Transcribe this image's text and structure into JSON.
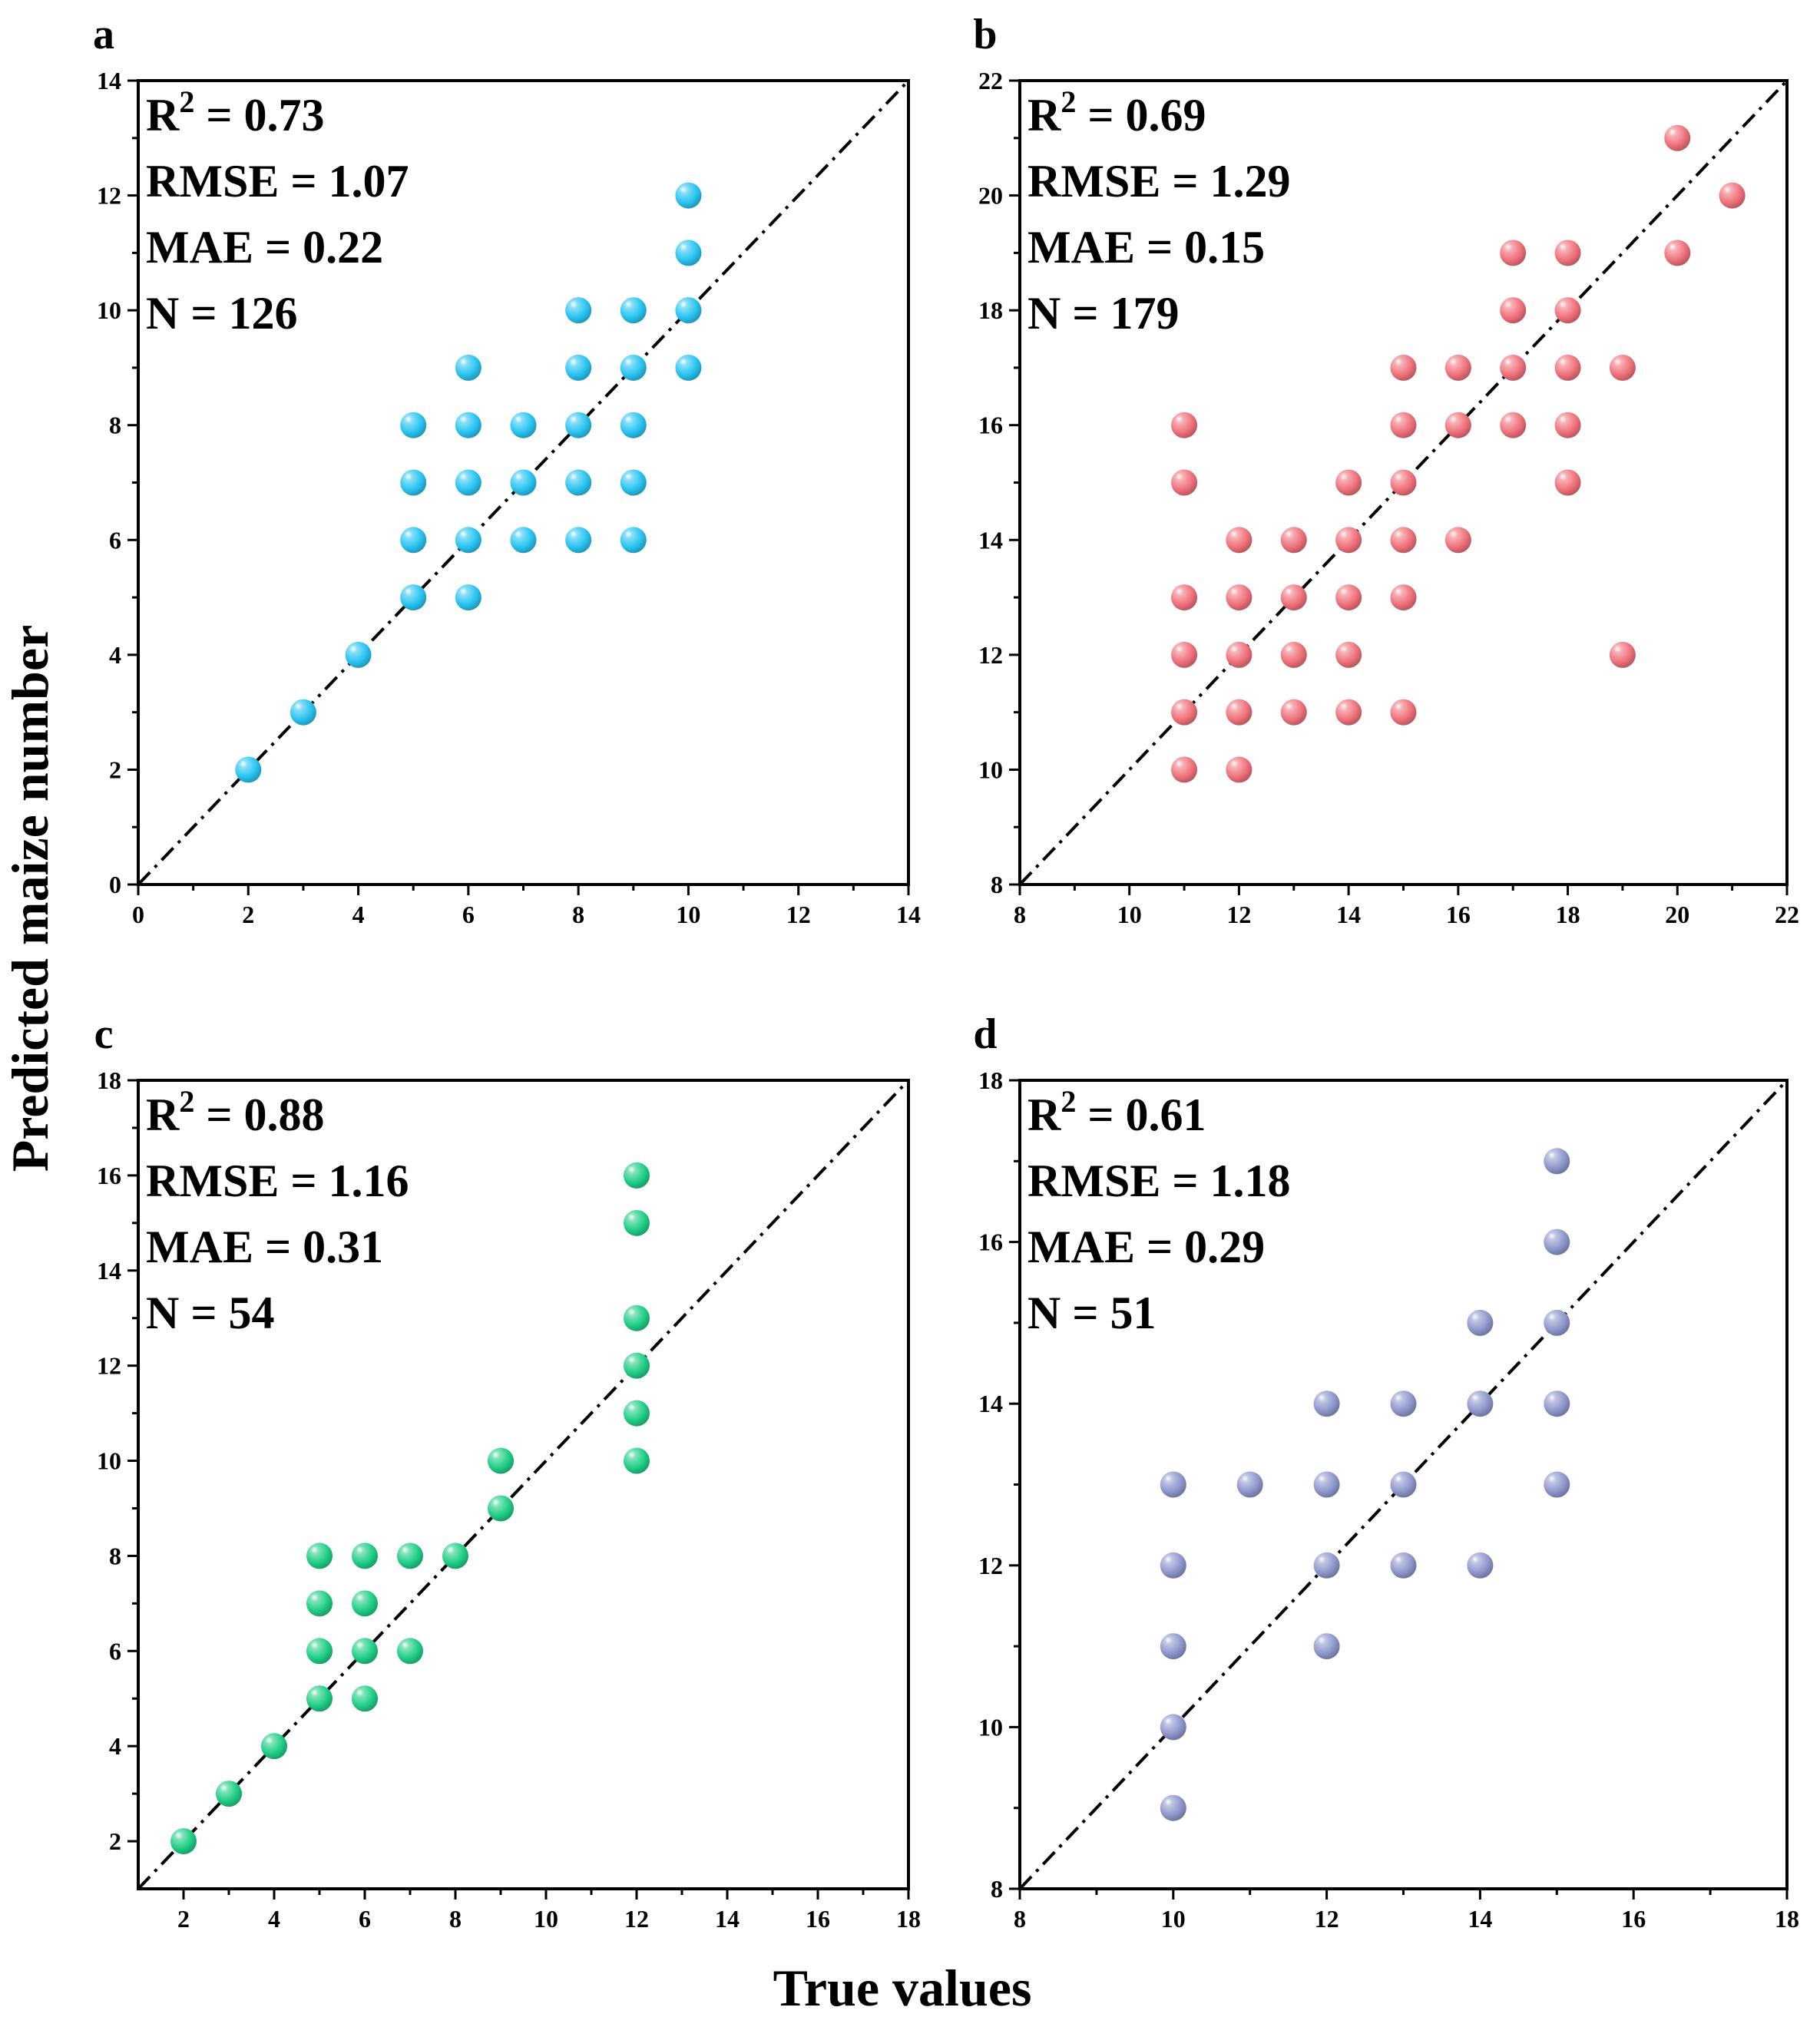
{
  "figure": {
    "xlabel": "True values",
    "ylabel": "Predicted maize number"
  },
  "chart_data": [
    {
      "type": "scatter",
      "panel": "a",
      "color": "#29c4f2",
      "xlim": [
        0,
        14
      ],
      "ylim": [
        0,
        14
      ],
      "xticks": [
        0,
        2,
        4,
        6,
        8,
        10,
        12,
        14
      ],
      "yticks": [
        0,
        2,
        4,
        6,
        8,
        10,
        12,
        14
      ],
      "stats": {
        "r2_label": "R",
        "r2_sup": "2",
        "r2_value": " = 0.73",
        "rmse": "RMSE = 1.07",
        "mae": "MAE = 0.22",
        "n": "N = 126"
      },
      "reference_line": "y = x",
      "points": [
        [
          2,
          2
        ],
        [
          3,
          3
        ],
        [
          4,
          4
        ],
        [
          5,
          5
        ],
        [
          5,
          6
        ],
        [
          5,
          7
        ],
        [
          5,
          8
        ],
        [
          6,
          5
        ],
        [
          6,
          6
        ],
        [
          6,
          7
        ],
        [
          6,
          8
        ],
        [
          6,
          9
        ],
        [
          7,
          6
        ],
        [
          7,
          7
        ],
        [
          7,
          8
        ],
        [
          8,
          6
        ],
        [
          8,
          7
        ],
        [
          8,
          8
        ],
        [
          8,
          9
        ],
        [
          8,
          10
        ],
        [
          9,
          6
        ],
        [
          9,
          7
        ],
        [
          9,
          8
        ],
        [
          9,
          9
        ],
        [
          9,
          10
        ],
        [
          10,
          9
        ],
        [
          10,
          10
        ],
        [
          10,
          11
        ],
        [
          10,
          12
        ]
      ]
    },
    {
      "type": "scatter",
      "panel": "b",
      "color": "#f0717b",
      "xlim": [
        8,
        22
      ],
      "ylim": [
        8,
        22
      ],
      "xticks": [
        8,
        10,
        12,
        14,
        16,
        18,
        20,
        22
      ],
      "yticks": [
        8,
        10,
        12,
        14,
        16,
        18,
        20,
        22
      ],
      "stats": {
        "r2_label": "R",
        "r2_sup": "2",
        "r2_value": " = 0.69",
        "rmse": "RMSE = 1.29",
        "mae": "MAE = 0.15",
        "n": "N = 179"
      },
      "reference_line": "y = x",
      "points": [
        [
          11,
          10
        ],
        [
          11,
          11
        ],
        [
          11,
          12
        ],
        [
          11,
          13
        ],
        [
          11,
          15
        ],
        [
          11,
          16
        ],
        [
          12,
          10
        ],
        [
          12,
          11
        ],
        [
          12,
          12
        ],
        [
          12,
          13
        ],
        [
          12,
          14
        ],
        [
          13,
          11
        ],
        [
          13,
          12
        ],
        [
          13,
          13
        ],
        [
          13,
          14
        ],
        [
          14,
          11
        ],
        [
          14,
          12
        ],
        [
          14,
          13
        ],
        [
          14,
          14
        ],
        [
          14,
          15
        ],
        [
          15,
          11
        ],
        [
          15,
          13
        ],
        [
          15,
          14
        ],
        [
          15,
          15
        ],
        [
          15,
          16
        ],
        [
          15,
          17
        ],
        [
          16,
          14
        ],
        [
          16,
          16
        ],
        [
          16,
          17
        ],
        [
          17,
          16
        ],
        [
          17,
          17
        ],
        [
          17,
          18
        ],
        [
          17,
          19
        ],
        [
          18,
          15
        ],
        [
          18,
          16
        ],
        [
          18,
          17
        ],
        [
          18,
          18
        ],
        [
          18,
          19
        ],
        [
          19,
          12
        ],
        [
          19,
          17
        ],
        [
          20,
          19
        ],
        [
          20,
          21
        ],
        [
          21,
          20
        ]
      ]
    },
    {
      "type": "scatter",
      "panel": "c",
      "color": "#1fce86",
      "xlim": [
        1,
        18
      ],
      "ylim": [
        1,
        18
      ],
      "xticks": [
        2,
        4,
        6,
        8,
        10,
        12,
        14,
        16,
        18
      ],
      "yticks": [
        2,
        4,
        6,
        8,
        10,
        12,
        14,
        16,
        18
      ],
      "stats": {
        "r2_label": "R",
        "r2_sup": "2",
        "r2_value": " = 0.88",
        "rmse": "RMSE = 1.16",
        "mae": "MAE = 0.31",
        "n": "N = 54"
      },
      "reference_line": "y = x",
      "points": [
        [
          2,
          2
        ],
        [
          3,
          3
        ],
        [
          4,
          4
        ],
        [
          5,
          5
        ],
        [
          5,
          6
        ],
        [
          5,
          7
        ],
        [
          5,
          8
        ],
        [
          6,
          5
        ],
        [
          6,
          6
        ],
        [
          6,
          7
        ],
        [
          6,
          8
        ],
        [
          7,
          6
        ],
        [
          7,
          8
        ],
        [
          8,
          8
        ],
        [
          9,
          9
        ],
        [
          9,
          10
        ],
        [
          12,
          10
        ],
        [
          12,
          11
        ],
        [
          12,
          12
        ],
        [
          12,
          13
        ],
        [
          12,
          15
        ],
        [
          12,
          16
        ]
      ]
    },
    {
      "type": "scatter",
      "panel": "d",
      "color": "#8e97cc",
      "xlim": [
        8,
        18
      ],
      "ylim": [
        8,
        18
      ],
      "xticks": [
        8,
        10,
        12,
        14,
        16,
        18
      ],
      "yticks": [
        8,
        10,
        12,
        14,
        16,
        18
      ],
      "stats": {
        "r2_label": "R",
        "r2_sup": "2",
        "r2_value": " = 0.61",
        "rmse": "RMSE = 1.18",
        "mae": "MAE = 0.29",
        "n": "N = 51"
      },
      "reference_line": "y = x",
      "points": [
        [
          10,
          9
        ],
        [
          10,
          10
        ],
        [
          10,
          11
        ],
        [
          10,
          12
        ],
        [
          10,
          13
        ],
        [
          11,
          13
        ],
        [
          12,
          11
        ],
        [
          12,
          12
        ],
        [
          12,
          13
        ],
        [
          12,
          14
        ],
        [
          13,
          12
        ],
        [
          13,
          13
        ],
        [
          13,
          14
        ],
        [
          14,
          12
        ],
        [
          14,
          14
        ],
        [
          14,
          15
        ],
        [
          15,
          13
        ],
        [
          15,
          14
        ],
        [
          15,
          15
        ],
        [
          15,
          16
        ],
        [
          15,
          17
        ]
      ]
    }
  ]
}
